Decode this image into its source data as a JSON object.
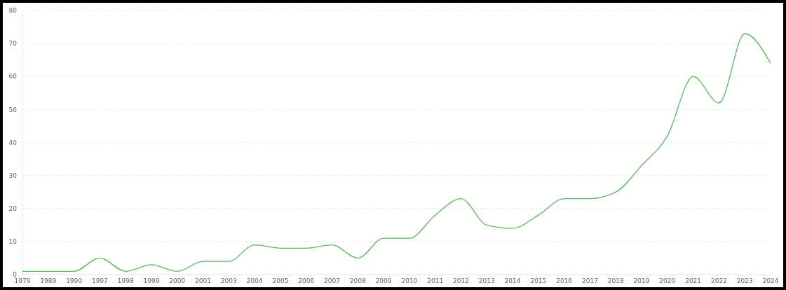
{
  "chart_data": {
    "type": "line",
    "categories": [
      "1979",
      "1989",
      "1990",
      "1997",
      "1998",
      "1999",
      "2000",
      "2001",
      "2003",
      "2004",
      "2005",
      "2006",
      "2007",
      "2008",
      "2009",
      "2010",
      "2011",
      "2012",
      "2013",
      "2014",
      "2015",
      "2016",
      "2017",
      "2018",
      "2019",
      "2020",
      "2021",
      "2022",
      "2023",
      "2024"
    ],
    "series": [
      {
        "color": "#5cb85c",
        "values": [
          1,
          1,
          1,
          5,
          1,
          3,
          1,
          4,
          4,
          9,
          8,
          8,
          9,
          5,
          11,
          11,
          18,
          23,
          15,
          14,
          18,
          23,
          23,
          25,
          33,
          42,
          60,
          52,
          73,
          64
        ]
      }
    ],
    "ylim": [
      0,
      80
    ],
    "yticks": [
      0,
      10,
      20,
      30,
      40,
      50,
      60,
      70,
      80
    ],
    "grid": "y",
    "marker": "none",
    "line_style": "solid"
  }
}
